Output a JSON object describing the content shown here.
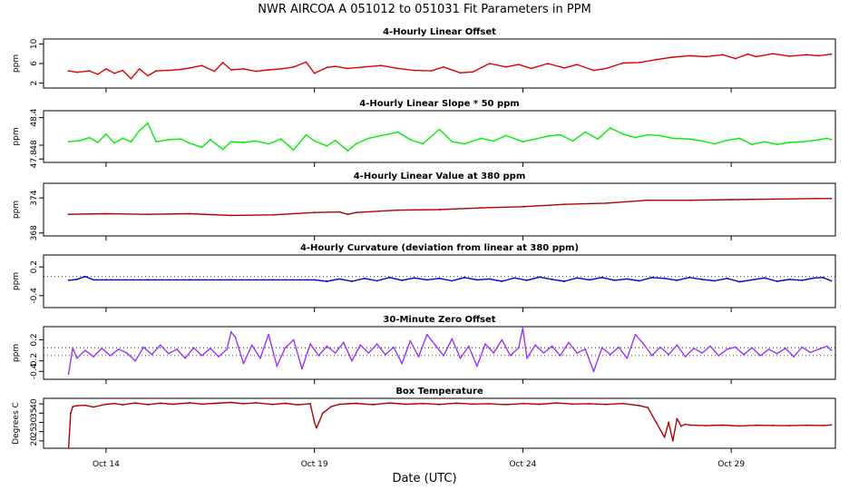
{
  "title": "NWR   AIRCOA A   051012 to 051031   Fit Parameters in PPM",
  "xlabel": "Date (UTC)",
  "x_axis": {
    "range_days": [
      12.5,
      31.5
    ],
    "ticks": [
      {
        "label": "Oct 14",
        "day": 14
      },
      {
        "label": "Oct 19",
        "day": 19
      },
      {
        "label": "Oct 24",
        "day": 24
      },
      {
        "label": "Oct 29",
        "day": 29
      }
    ]
  },
  "chart_data": [
    {
      "type": "line",
      "title": "4-Hourly Linear Offset",
      "ylabel": "ppm",
      "ylim": [
        1,
        11
      ],
      "yticks": [
        "2",
        "6",
        "10"
      ],
      "ytick_values": [
        2,
        6,
        10
      ],
      "color": "#e00000",
      "series": [
        {
          "name": "offset",
          "x": [
            13.1,
            13.3,
            13.6,
            13.8,
            14.0,
            14.2,
            14.4,
            14.6,
            14.8,
            15.0,
            15.2,
            15.5,
            15.8,
            16.0,
            16.3,
            16.6,
            16.8,
            17.0,
            17.3,
            17.6,
            17.9,
            18.2,
            18.5,
            18.8,
            19.0,
            19.3,
            19.5,
            19.8,
            20.2,
            20.6,
            21.0,
            21.4,
            21.8,
            22.1,
            22.5,
            22.8,
            23.2,
            23.6,
            23.9,
            24.2,
            24.6,
            25.0,
            25.3,
            25.7,
            26.0,
            26.4,
            26.8,
            27.2,
            27.6,
            28.0,
            28.4,
            28.8,
            29.1,
            29.4,
            29.6,
            30.0,
            30.4,
            30.8,
            31.1,
            31.4
          ],
          "y": [
            4.5,
            4.2,
            4.5,
            3.8,
            4.9,
            4.0,
            4.6,
            2.9,
            4.9,
            3.5,
            4.5,
            4.6,
            4.8,
            5.1,
            5.6,
            4.4,
            6.2,
            4.7,
            4.9,
            4.4,
            4.7,
            4.9,
            5.3,
            6.3,
            4.0,
            5.2,
            5.4,
            5.0,
            5.3,
            5.6,
            5.0,
            4.6,
            4.5,
            5.3,
            4.1,
            4.3,
            6.0,
            5.3,
            5.8,
            5.0,
            6.0,
            5.1,
            5.8,
            4.6,
            5.0,
            6.1,
            6.2,
            6.8,
            7.3,
            7.6,
            7.4,
            7.8,
            7.0,
            7.9,
            7.4,
            8.0,
            7.5,
            7.8,
            7.6,
            7.9
          ]
        }
      ]
    },
    {
      "type": "line",
      "title": "4-Hourly Linear Slope * 50 ppm",
      "ylabel": "ppm",
      "ylim": [
        47.75,
        48.5
      ],
      "yticks": [
        "47.8",
        "48",
        "48.4"
      ],
      "ytick_values": [
        47.8,
        48.0,
        48.4
      ],
      "color": "#00ee00",
      "series": [
        {
          "name": "slope",
          "x": [
            13.1,
            13.4,
            13.6,
            13.8,
            14.0,
            14.2,
            14.4,
            14.6,
            14.8,
            15.0,
            15.2,
            15.5,
            15.8,
            16.0,
            16.3,
            16.5,
            16.8,
            17.0,
            17.3,
            17.6,
            17.9,
            18.2,
            18.5,
            18.8,
            19.0,
            19.3,
            19.5,
            19.8,
            20.0,
            20.3,
            20.6,
            21.0,
            21.3,
            21.6,
            22.0,
            22.3,
            22.6,
            23.0,
            23.3,
            23.6,
            24.0,
            24.3,
            24.6,
            24.9,
            25.2,
            25.5,
            25.8,
            26.1,
            26.4,
            26.7,
            27.0,
            27.3,
            27.6,
            28.0,
            28.3,
            28.6,
            28.9,
            29.2,
            29.5,
            29.8,
            30.1,
            30.4,
            30.7,
            31.0,
            31.3,
            31.4
          ],
          "y": [
            48.05,
            48.07,
            48.11,
            48.04,
            48.16,
            48.03,
            48.1,
            48.05,
            48.21,
            48.32,
            48.05,
            48.08,
            48.09,
            48.03,
            47.97,
            48.08,
            47.94,
            48.05,
            48.04,
            48.06,
            48.02,
            48.09,
            47.93,
            48.15,
            48.06,
            47.99,
            48.07,
            47.92,
            48.02,
            48.1,
            48.14,
            48.19,
            48.08,
            48.02,
            48.23,
            48.05,
            48.02,
            48.1,
            48.06,
            48.14,
            48.05,
            48.09,
            48.13,
            48.15,
            48.06,
            48.19,
            48.09,
            48.25,
            48.16,
            48.11,
            48.15,
            48.14,
            48.1,
            48.09,
            48.06,
            48.02,
            48.07,
            48.1,
            48.01,
            48.05,
            48.01,
            48.04,
            48.05,
            48.07,
            48.1,
            48.08
          ]
        }
      ]
    },
    {
      "type": "line",
      "title": "4-Hourly Linear Value at 380 ppm",
      "ylabel": "ppm",
      "ylim": [
        367.5,
        376.5
      ],
      "yticks": [
        "368",
        "374"
      ],
      "ytick_values": [
        368,
        374
      ],
      "color": "#b00000",
      "series": [
        {
          "name": "value",
          "x": [
            13.1,
            14.0,
            15.0,
            16.0,
            17.0,
            18.0,
            19.0,
            19.6,
            19.8,
            20.0,
            21.0,
            22.0,
            23.0,
            24.0,
            25.0,
            26.0,
            27.0,
            28.0,
            29.0,
            30.0,
            31.0,
            31.4
          ],
          "y": [
            371.2,
            371.3,
            371.2,
            371.3,
            371.0,
            371.1,
            371.5,
            371.6,
            371.2,
            371.5,
            371.9,
            372.0,
            372.3,
            372.5,
            372.9,
            373.1,
            373.6,
            373.6,
            373.7,
            373.8,
            373.9,
            373.9
          ]
        }
      ]
    },
    {
      "type": "line",
      "title": "4-Hourly Curvature (deviation from linear at 380 ppm)",
      "ylabel": "ppm",
      "ylim": [
        -0.65,
        0.45
      ],
      "yticks": [
        "-0.4",
        "0.2"
      ],
      "ytick_values": [
        -0.4,
        0.2
      ],
      "color": "#0000cc",
      "reference_line": 0.0,
      "series": [
        {
          "name": "curvature",
          "x": [
            13.1,
            13.3,
            13.5,
            13.7,
            14.0,
            15.0,
            16.0,
            17.0,
            18.0,
            19.0,
            19.3,
            19.6,
            19.9,
            20.2,
            20.5,
            20.8,
            21.1,
            21.4,
            21.7,
            22.0,
            22.3,
            22.6,
            22.9,
            23.2,
            23.5,
            23.8,
            24.1,
            24.4,
            24.7,
            25.0,
            25.3,
            25.6,
            25.9,
            26.2,
            26.5,
            26.8,
            27.1,
            27.4,
            27.7,
            28.0,
            28.3,
            28.6,
            28.9,
            29.2,
            29.5,
            29.8,
            30.1,
            30.4,
            30.7,
            31.0,
            31.2,
            31.4
          ],
          "y": [
            -0.08,
            -0.06,
            0.0,
            -0.07,
            -0.07,
            -0.07,
            -0.07,
            -0.07,
            -0.07,
            -0.07,
            -0.1,
            -0.05,
            -0.1,
            -0.04,
            -0.09,
            -0.02,
            -0.08,
            -0.03,
            -0.07,
            -0.04,
            -0.09,
            -0.02,
            -0.07,
            -0.05,
            -0.1,
            -0.03,
            -0.08,
            -0.01,
            -0.06,
            -0.1,
            -0.03,
            -0.07,
            -0.02,
            -0.08,
            -0.05,
            -0.09,
            -0.02,
            -0.04,
            -0.08,
            -0.02,
            -0.06,
            -0.09,
            -0.04,
            -0.11,
            -0.07,
            -0.03,
            -0.1,
            -0.06,
            -0.08,
            -0.03,
            -0.02,
            -0.09
          ]
        }
      ]
    },
    {
      "type": "line",
      "title": "30-Minute Zero Offset",
      "ylabel": "ppm",
      "ylim": [
        -0.55,
        0.45
      ],
      "yticks": [
        "-0.4",
        "-0.2",
        "0.2"
      ],
      "ytick_values": [
        -0.4,
        -0.2,
        0.2
      ],
      "color": "#9933ff",
      "reference_lines": [
        0.05,
        -0.1
      ],
      "series": [
        {
          "name": "zero",
          "x": [
            13.1,
            13.2,
            13.3,
            13.5,
            13.7,
            13.9,
            14.1,
            14.3,
            14.5,
            14.7,
            14.9,
            15.1,
            15.3,
            15.5,
            15.7,
            15.9,
            16.1,
            16.3,
            16.5,
            16.7,
            16.9,
            17.0,
            17.1,
            17.3,
            17.5,
            17.7,
            17.9,
            18.1,
            18.3,
            18.5,
            18.7,
            18.9,
            19.1,
            19.3,
            19.5,
            19.7,
            19.9,
            20.1,
            20.3,
            20.5,
            20.7,
            20.9,
            21.1,
            21.3,
            21.5,
            21.7,
            21.9,
            22.1,
            22.3,
            22.5,
            22.7,
            22.9,
            23.1,
            23.3,
            23.5,
            23.7,
            23.9,
            24.0,
            24.1,
            24.3,
            24.5,
            24.7,
            24.9,
            25.1,
            25.3,
            25.5,
            25.7,
            25.9,
            26.1,
            26.3,
            26.5,
            26.7,
            26.9,
            27.1,
            27.3,
            27.5,
            27.7,
            27.9,
            28.1,
            28.3,
            28.5,
            28.7,
            28.9,
            29.1,
            29.3,
            29.5,
            29.7,
            29.9,
            30.1,
            30.3,
            30.5,
            30.7,
            30.9,
            31.1,
            31.3,
            31.4
          ],
          "y": [
            -0.45,
            0.05,
            -0.15,
            0.0,
            -0.12,
            0.04,
            -0.1,
            0.02,
            -0.05,
            -0.2,
            0.06,
            -0.08,
            0.1,
            -0.06,
            0.02,
            -0.15,
            0.05,
            -0.1,
            0.04,
            -0.12,
            0.02,
            0.35,
            0.25,
            -0.25,
            0.1,
            -0.15,
            0.3,
            -0.3,
            0.05,
            0.2,
            -0.35,
            0.12,
            -0.1,
            0.08,
            -0.05,
            0.15,
            -0.2,
            0.1,
            -0.05,
            0.12,
            -0.08,
            0.06,
            -0.25,
            0.18,
            -0.12,
            0.3,
            0.1,
            -0.1,
            0.22,
            -0.15,
            0.08,
            -0.3,
            0.12,
            -0.05,
            0.2,
            -0.1,
            0.05,
            0.42,
            -0.15,
            0.1,
            -0.05,
            0.08,
            -0.1,
            0.15,
            -0.05,
            0.02,
            -0.4,
            0.05,
            -0.08,
            0.06,
            -0.15,
            0.3,
            0.12,
            -0.1,
            0.06,
            -0.08,
            0.1,
            -0.12,
            0.04,
            -0.05,
            0.08,
            -0.1,
            0.02,
            0.06,
            -0.08,
            0.05,
            -0.1,
            0.02,
            -0.06,
            0.04,
            -0.12,
            0.06,
            -0.04,
            0.02,
            0.08,
            0.0
          ]
        }
      ]
    },
    {
      "type": "line",
      "title": "Box Temperature",
      "ylabel": "Degrees C",
      "ylim": [
        16,
        43
      ],
      "yticks": [
        "20",
        "25",
        "30",
        "35",
        "40"
      ],
      "ytick_values": [
        20,
        25,
        30,
        35,
        40
      ],
      "color": "#b00000",
      "series": [
        {
          "name": "temp",
          "x": [
            13.1,
            13.15,
            13.2,
            13.3,
            13.5,
            13.7,
            14.0,
            14.2,
            14.4,
            14.7,
            15.0,
            15.3,
            15.6,
            16.0,
            16.3,
            16.6,
            17.0,
            17.3,
            17.6,
            18.0,
            18.3,
            18.6,
            18.9,
            19.0,
            19.05,
            19.2,
            19.4,
            19.6,
            20.0,
            20.4,
            20.8,
            21.2,
            21.6,
            22.0,
            22.4,
            22.8,
            23.2,
            23.6,
            24.0,
            24.4,
            24.8,
            25.2,
            25.6,
            26.0,
            26.4,
            26.8,
            27.0,
            27.2,
            27.4,
            27.5,
            27.6,
            27.7,
            27.8,
            27.9,
            28.0,
            28.4,
            28.8,
            29.2,
            29.6,
            30.0,
            30.4,
            30.8,
            31.2,
            31.4
          ],
          "y": [
            16.0,
            35.0,
            38.5,
            39.0,
            39.2,
            38.3,
            39.8,
            40.2,
            39.5,
            40.5,
            39.6,
            40.4,
            39.8,
            40.6,
            39.9,
            40.3,
            40.8,
            40.1,
            40.6,
            39.7,
            40.3,
            39.5,
            40.1,
            30.0,
            27.0,
            35.0,
            38.5,
            39.8,
            40.3,
            39.6,
            40.5,
            39.8,
            40.2,
            39.7,
            40.4,
            39.9,
            40.1,
            39.6,
            40.2,
            39.8,
            40.5,
            39.9,
            40.1,
            39.7,
            40.2,
            39.0,
            38.0,
            30.0,
            22.0,
            30.0,
            20.0,
            32.0,
            28.0,
            29.0,
            28.5,
            28.2,
            28.5,
            28.1,
            28.4,
            28.3,
            28.2,
            28.4,
            28.3,
            28.6
          ]
        }
      ]
    }
  ]
}
